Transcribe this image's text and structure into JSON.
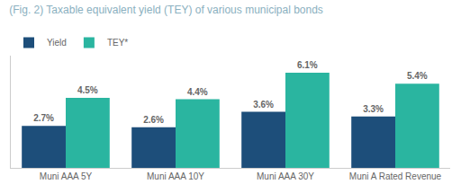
{
  "chart_data": {
    "type": "bar",
    "title": "(Fig. 2) Taxable equivalent yield (TEY) of various municipal bonds",
    "categories": [
      "Muni AAA 5Y",
      "Muni AAA 10Y",
      "Muni AAA 30Y",
      "Muni A Rated Revenue"
    ],
    "series": [
      {
        "name": "Yield",
        "color": "#1d4e7a",
        "values": [
          2.7,
          2.6,
          3.6,
          3.3
        ],
        "value_labels": [
          "2.7%",
          "2.6%",
          "3.6%",
          "3.3%"
        ]
      },
      {
        "name": "TEY*",
        "color": "#2ab5a0",
        "values": [
          4.5,
          4.4,
          6.1,
          5.4
        ],
        "value_labels": [
          "4.5%",
          "4.4%",
          "6.1%",
          "5.4%"
        ]
      }
    ],
    "ylim": [
      0,
      7.2
    ],
    "data_labels": true,
    "tick_labels": "x",
    "grid": false,
    "legend": "upper left"
  }
}
